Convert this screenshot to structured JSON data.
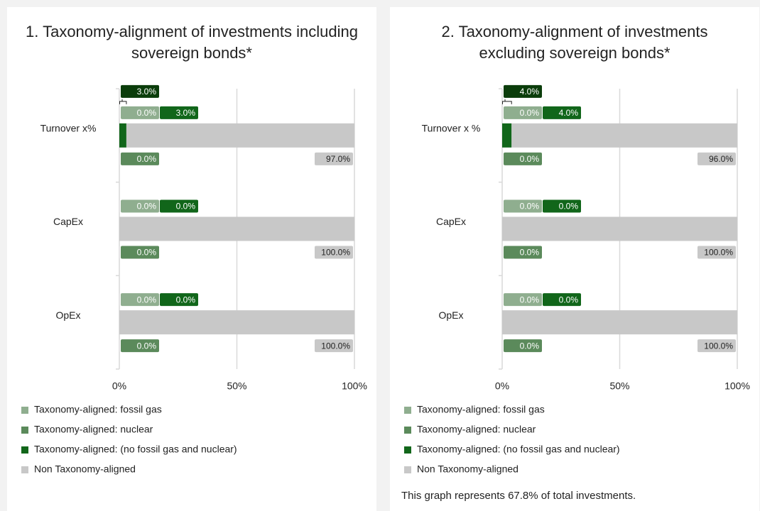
{
  "chart_data": [
    {
      "type": "stacked-bar-horizontal",
      "title": "1. Taxonomy-alignment of investments including sovereign bonds*",
      "categories": [
        "Turnover x%",
        "CapEx",
        "OpEx"
      ],
      "series": [
        {
          "name": "Taxonomy-aligned: fossil gas",
          "color": "#8fae8f",
          "values": [
            0,
            0,
            0
          ],
          "value_labels": [
            "0.0%",
            "0.0%",
            "0.0%"
          ]
        },
        {
          "name": "Taxonomy-aligned: nuclear",
          "color": "#5b8a5b",
          "values": [
            0,
            0,
            0
          ],
          "value_labels": [
            "0.0%",
            "0.0%",
            "0.0%"
          ]
        },
        {
          "name": "Taxonomy-aligned: (no fossil gas and nuclear)",
          "color": "#11661a",
          "values": [
            3,
            0,
            0
          ],
          "value_labels": [
            "3.0%",
            "0.0%",
            "0.0%"
          ]
        },
        {
          "name": "Non Taxonomy-aligned",
          "color": "#c8c8c8",
          "values": [
            97,
            100,
            100
          ],
          "value_labels": [
            "97.0%",
            "100.0%",
            "100.0%"
          ]
        }
      ],
      "total": {
        "value": 3,
        "label": "3.0%",
        "color": "#0b3d0b"
      },
      "xlim": [
        0,
        100
      ],
      "xticks": [
        {
          "value": 0,
          "label": "0%"
        },
        {
          "value": 50,
          "label": "50%"
        },
        {
          "value": 100,
          "label": "100%"
        }
      ],
      "grid": true
    },
    {
      "type": "stacked-bar-horizontal",
      "title": "2. Taxonomy-alignment of investments excluding sovereign bonds*",
      "categories": [
        "Turnover x %",
        "CapEx",
        "OpEx"
      ],
      "series": [
        {
          "name": "Taxonomy-aligned: fossil gas",
          "color": "#8fae8f",
          "values": [
            0,
            0,
            0
          ],
          "value_labels": [
            "0.0%",
            "0.0%",
            "0.0%"
          ]
        },
        {
          "name": "Taxonomy-aligned: nuclear",
          "color": "#5b8a5b",
          "values": [
            0,
            0,
            0
          ],
          "value_labels": [
            "0.0%",
            "0.0%",
            "0.0%"
          ]
        },
        {
          "name": "Taxonomy-aligned: (no fossil gas and nuclear)",
          "color": "#11661a",
          "values": [
            4,
            0,
            0
          ],
          "value_labels": [
            "4.0%",
            "0.0%",
            "0.0%"
          ]
        },
        {
          "name": "Non Taxonomy-aligned",
          "color": "#c8c8c8",
          "values": [
            96,
            100,
            100
          ],
          "value_labels": [
            "96.0%",
            "100.0%",
            "100.0%"
          ]
        }
      ],
      "total": {
        "value": 4,
        "label": "4.0%",
        "color": "#0b3d0b"
      },
      "xlim": [
        0,
        100
      ],
      "xticks": [
        {
          "value": 0,
          "label": "0%"
        },
        {
          "value": 50,
          "label": "50%"
        },
        {
          "value": 100,
          "label": "100%"
        }
      ],
      "grid": true,
      "footnote": "This graph represents 67.8% of total investments."
    }
  ]
}
